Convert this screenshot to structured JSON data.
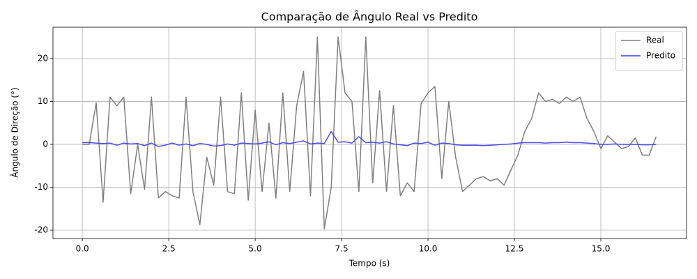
{
  "chart_data": {
    "type": "line",
    "title": "Comparação de Ângulo Real vs Predito",
    "x_label": "Tempo (s)",
    "y_label": "Ângulo de Direção (°)",
    "x": [
      0,
      0.2,
      0.4,
      0.6,
      0.8,
      1.0,
      1.2,
      1.4,
      1.6,
      1.8,
      2.0,
      2.2,
      2.4,
      2.6,
      2.8,
      3.0,
      3.2,
      3.4,
      3.6,
      3.8,
      4.0,
      4.2,
      4.4,
      4.6,
      4.8,
      5.0,
      5.2,
      5.4,
      5.6,
      5.8,
      6.0,
      6.2,
      6.4,
      6.6,
      6.8,
      7.0,
      7.2,
      7.4,
      7.6,
      7.8,
      8.0,
      8.2,
      8.4,
      8.6,
      8.8,
      9.0,
      9.2,
      9.4,
      9.6,
      9.8,
      10.0,
      10.2,
      10.4,
      10.6,
      10.8,
      11.0,
      11.2,
      11.4,
      11.6,
      11.8,
      12.0,
      12.2,
      12.4,
      12.6,
      12.8,
      13.0,
      13.2,
      13.4,
      13.6,
      13.8,
      14.0,
      14.2,
      14.4,
      14.6,
      14.8,
      15.0,
      15.2,
      15.4,
      15.6,
      15.8,
      16.0,
      16.2,
      16.4,
      16.6
    ],
    "series": [
      {
        "name": "Real",
        "color": "#7f7f7f",
        "values": [
          0,
          0,
          9.7,
          -13.5,
          11,
          9,
          11,
          -11.5,
          0,
          -10.5,
          11,
          -12.5,
          -11,
          -12,
          -12.5,
          11,
          -11,
          -18.7,
          -3,
          -9.5,
          11,
          -11,
          -11.5,
          12,
          -13,
          8,
          -11,
          5,
          -12.5,
          12,
          -11,
          9,
          17,
          -12,
          25,
          -19.7,
          -10,
          25,
          12,
          10,
          -11,
          25,
          -9,
          12.5,
          -11,
          9,
          -12,
          -9,
          -11,
          9.5,
          12,
          13.5,
          -8,
          10,
          -3,
          -11,
          -9.5,
          -8,
          -7.5,
          -8.5,
          -8,
          -9.5,
          -6,
          -2.5,
          3,
          6,
          12,
          10,
          10.5,
          9.5,
          11,
          10,
          11,
          6,
          3,
          -1,
          2,
          0.5,
          -1,
          -0.5,
          1.5,
          -2.5,
          -2.5,
          1.8
        ]
      },
      {
        "name": "Predito",
        "color": "#3b3bf0",
        "values": [
          0.4,
          0.4,
          0.3,
          0.2,
          0.3,
          -0.2,
          0.3,
          0.1,
          0.2,
          -0.3,
          0.3,
          -0.5,
          -0.2,
          0.3,
          -0.2,
          0.1,
          -0.3,
          0.2,
          0,
          -0.4,
          -0.3,
          0.1,
          -0.2,
          0.3,
          0.2,
          0.1,
          0.3,
          0.6,
          -0.1,
          0.4,
          0.2,
          0.5,
          0.8,
          0.1,
          0.3,
          0.2,
          3,
          0.5,
          0.6,
          0.3,
          1.8,
          0.4,
          0.5,
          0.3,
          0.6,
          0.1,
          -0.1,
          -0.3,
          0.3,
          0.2,
          0.5,
          -0.2,
          0.3,
          0.2,
          -0.1,
          -0.2,
          -0.2,
          -0.2,
          -0.3,
          -0.2,
          -0.1,
          0,
          0.1,
          0.3,
          0.4,
          0.4,
          0.4,
          0.3,
          0.4,
          0.4,
          0.5,
          0.4,
          0.4,
          0.3,
          0.2,
          0,
          0,
          0.1,
          0,
          0,
          0,
          -0.1,
          -0.1,
          0
        ]
      }
    ],
    "xlim": [
      -0.85,
      17.48
    ],
    "ylim": [
      -21.95,
      27.3
    ],
    "xticks": [
      {
        "value": 0,
        "label": "0.0"
      },
      {
        "value": 2.5,
        "label": "2.5"
      },
      {
        "value": 5,
        "label": "5.0"
      },
      {
        "value": 7.5,
        "label": "7.5"
      },
      {
        "value": 10,
        "label": "10.0"
      },
      {
        "value": 12.5,
        "label": "12.5"
      },
      {
        "value": 15,
        "label": "15.0"
      }
    ],
    "yticks": [
      -20,
      -10,
      0,
      10,
      20
    ],
    "grid": true,
    "legend": "upper right"
  }
}
